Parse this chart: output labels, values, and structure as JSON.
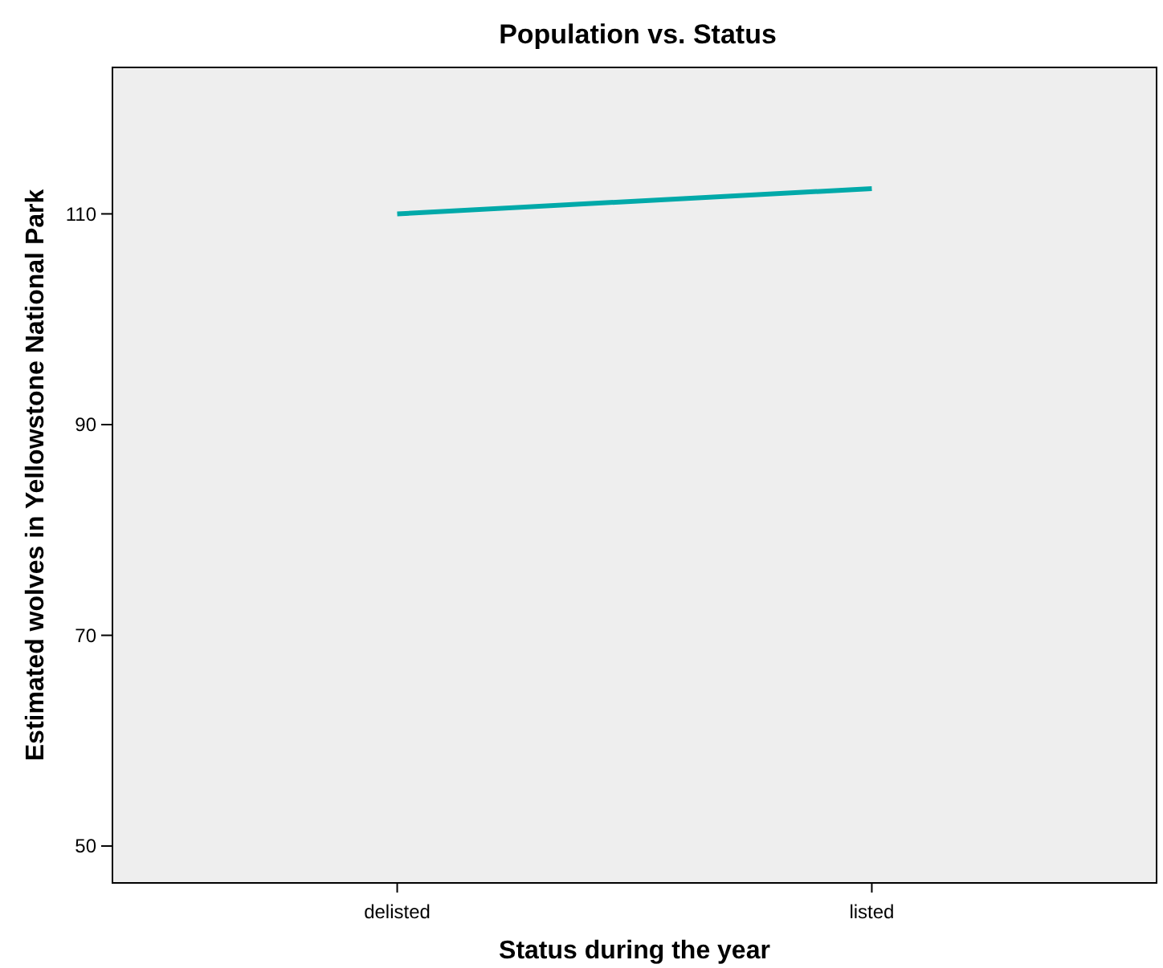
{
  "chart_data": {
    "type": "line",
    "title": "Population vs. Status",
    "xlabel": "Status during the year",
    "ylabel": "Estimated wolves in Yellowstone National Park",
    "categories": [
      "delisted",
      "listed"
    ],
    "series": [
      {
        "color": "#00a9a9",
        "values": [
          110.0,
          112.4
        ]
      }
    ],
    "ylim": [
      46.5,
      123.9
    ],
    "yticks": [
      50,
      70,
      90,
      110
    ],
    "grid": false,
    "marker": "none",
    "line_style": "solid"
  }
}
